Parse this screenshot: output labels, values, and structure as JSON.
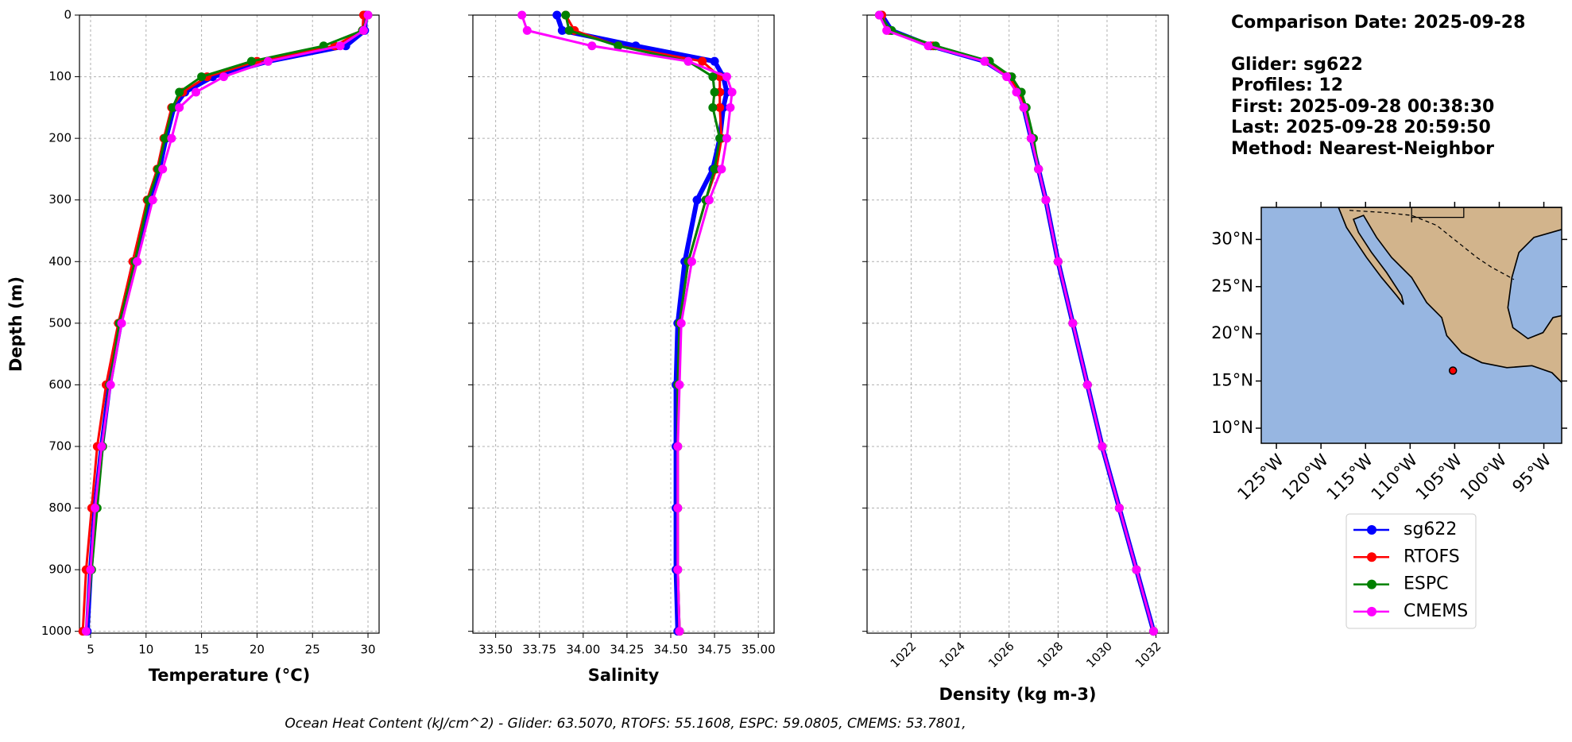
{
  "chart_data": [
    {
      "type": "line",
      "xlabel": "Temperature (°C)",
      "ylabel": "Depth (m)",
      "xlim": [
        4,
        31
      ],
      "xticks": [
        5,
        10,
        15,
        20,
        25,
        30
      ],
      "ylim": [
        0,
        1003
      ],
      "yinverted": true,
      "yticks": [
        0,
        100,
        200,
        300,
        400,
        500,
        600,
        700,
        800,
        900,
        1000
      ],
      "yticklabels": true,
      "grid": true,
      "depth": [
        0,
        25,
        50,
        75,
        100,
        125,
        150,
        200,
        250,
        300,
        400,
        500,
        600,
        700,
        800,
        900,
        1000
      ],
      "series": [
        {
          "name": "sg622",
          "color": "#0000ff",
          "values": [
            29.8,
            29.7,
            28,
            21,
            16,
            13.5,
            12.5,
            11.8,
            11.2,
            10.3,
            8.9,
            7.7,
            6.7,
            6.0,
            5.4,
            5.0,
            4.7
          ]
        },
        {
          "name": "RTOFS",
          "color": "#ff0000",
          "values": [
            29.6,
            29.5,
            27,
            20,
            15.5,
            13.3,
            12.3,
            11.6,
            11,
            10.1,
            8.8,
            7.5,
            6.4,
            5.6,
            5.1,
            4.6,
            4.3
          ]
        },
        {
          "name": "ESPC",
          "color": "#008000",
          "values": [
            30.0,
            29.5,
            26,
            19.5,
            15,
            13,
            12.4,
            11.7,
            11.1,
            10.2,
            9,
            7.6,
            6.7,
            6.1,
            5.6,
            5.1,
            4.6
          ]
        },
        {
          "name": "CMEMS",
          "color": "#ff00ff",
          "values": [
            30,
            29.6,
            27.5,
            21,
            17,
            14.5,
            13,
            12.3,
            11.5,
            10.6,
            9.2,
            7.8,
            6.8,
            6.0,
            5.4,
            5.0,
            4.6
          ]
        }
      ]
    },
    {
      "type": "line",
      "xlabel": "Salinity",
      "xlim": [
        33.37,
        35.09
      ],
      "xticks": [
        {
          "value": 33.5,
          "label": "33.50"
        },
        {
          "value": 33.75,
          "label": "33.75"
        },
        {
          "value": 34,
          "label": "34.00"
        },
        {
          "value": 34.25,
          "label": "34.25"
        },
        {
          "value": 34.5,
          "label": "34.50"
        },
        {
          "value": 34.75,
          "label": "34.75"
        },
        {
          "value": 35,
          "label": "35.00"
        }
      ],
      "ylim": [
        0,
        1003
      ],
      "yinverted": true,
      "yticks": [
        0,
        100,
        200,
        300,
        400,
        500,
        600,
        700,
        800,
        900,
        1000
      ],
      "yticklabels": false,
      "grid": true,
      "depth": [
        0,
        25,
        50,
        75,
        100,
        125,
        150,
        200,
        250,
        300,
        400,
        500,
        600,
        700,
        800,
        900,
        1000
      ],
      "series": [
        {
          "name": "sg622",
          "color": "#0000ff",
          "values": [
            33.85,
            33.88,
            34.3,
            34.75,
            34.8,
            34.82,
            34.8,
            34.78,
            34.74,
            34.65,
            34.58,
            34.54,
            34.53,
            34.53,
            34.53,
            34.53,
            34.54
          ]
        },
        {
          "name": "RTOFS",
          "color": "#ff0000",
          "values": [
            33.9,
            33.95,
            34.2,
            34.68,
            34.78,
            34.78,
            34.78,
            34.79,
            34.76,
            34.7,
            34.6,
            34.55,
            34.54,
            34.54,
            34.54,
            34.54,
            34.55
          ]
        },
        {
          "name": "ESPC",
          "color": "#008000",
          "values": [
            33.9,
            33.92,
            34.2,
            34.6,
            34.74,
            34.75,
            34.74,
            34.78,
            34.75,
            34.7,
            34.6,
            34.55,
            34.54,
            34.54,
            34.54,
            34.54,
            34.55
          ]
        },
        {
          "name": "CMEMS",
          "color": "#ff00ff",
          "values": [
            33.65,
            33.68,
            34.05,
            34.6,
            34.82,
            34.85,
            34.84,
            34.82,
            34.79,
            34.72,
            34.62,
            34.56,
            34.55,
            34.54,
            34.54,
            34.54,
            34.55
          ]
        }
      ]
    },
    {
      "type": "line",
      "xlabel": "Density (kg m-3)",
      "xlim": [
        1020.2,
        1032.5
      ],
      "xticks": [
        1022,
        1024,
        1026,
        1028,
        1030,
        1032
      ],
      "xtickrotation": 45,
      "ylim": [
        0,
        1003
      ],
      "yinverted": true,
      "yticks": [
        0,
        100,
        200,
        300,
        400,
        500,
        600,
        700,
        800,
        900,
        1000
      ],
      "yticklabels": false,
      "grid": true,
      "depth": [
        0,
        25,
        50,
        75,
        100,
        125,
        150,
        200,
        250,
        300,
        400,
        500,
        600,
        700,
        800,
        900,
        1000
      ],
      "series": [
        {
          "name": "sg622",
          "color": "#0000ff",
          "values": [
            1020.8,
            1021.2,
            1022.8,
            1025.0,
            1026.0,
            1026.4,
            1026.6,
            1026.9,
            1027.2,
            1027.5,
            1028.0,
            1028.6,
            1029.2,
            1029.8,
            1030.5,
            1031.2,
            1031.9
          ]
        },
        {
          "name": "RTOFS",
          "color": "#ff0000",
          "values": [
            1020.8,
            1021.1,
            1022.9,
            1025.1,
            1026.0,
            1026.4,
            1026.6,
            1026.9,
            1027.2,
            1027.5,
            1028.0,
            1028.6,
            1029.2,
            1029.8,
            1030.5,
            1031.2,
            1031.9
          ]
        },
        {
          "name": "ESPC",
          "color": "#008000",
          "values": [
            1020.7,
            1021.2,
            1023.0,
            1025.2,
            1026.1,
            1026.5,
            1026.7,
            1027.0,
            1027.2,
            1027.5,
            1028.0,
            1028.6,
            1029.2,
            1029.8,
            1030.5,
            1031.2,
            1031.9
          ]
        },
        {
          "name": "CMEMS",
          "color": "#ff00ff",
          "values": [
            1020.7,
            1021.0,
            1022.7,
            1025.0,
            1025.9,
            1026.3,
            1026.6,
            1026.9,
            1027.2,
            1027.5,
            1028.0,
            1028.6,
            1029.2,
            1029.8,
            1030.5,
            1031.2,
            1031.9
          ]
        }
      ]
    },
    {
      "type": "map",
      "xlim": [
        -126.7,
        -93
      ],
      "ylim": [
        8.4,
        33.4
      ],
      "xticks": [
        {
          "value": -125,
          "label": "125°W"
        },
        {
          "value": -120,
          "label": "120°W"
        },
        {
          "value": -115,
          "label": "115°W"
        },
        {
          "value": -110,
          "label": "110°W"
        },
        {
          "value": -105,
          "label": "105°W"
        },
        {
          "value": -100,
          "label": "100°W"
        },
        {
          "value": -95,
          "label": "95°W"
        }
      ],
      "yticks": [
        {
          "value": 10,
          "label": "10°N"
        },
        {
          "value": 15,
          "label": "15°N"
        },
        {
          "value": 20,
          "label": "20°N"
        },
        {
          "value": 25,
          "label": "25°N"
        },
        {
          "value": 30,
          "label": "30°N"
        }
      ],
      "marker": {
        "x": -105.2,
        "y": 16.1,
        "color": "#ff0000"
      }
    }
  ],
  "info": {
    "date": "Comparison Date: 2025-09-28",
    "lines": [
      "Glider: sg622",
      "Profiles: 12",
      "First: 2025-09-28 00:38:30",
      "Last: 2025-09-28 20:59:50",
      "Method: Nearest-Neighbor"
    ]
  },
  "footer": "Ocean Heat Content (kJ/cm^2) - Glider: 63.5070,  RTOFS: 55.1608,  ESPC: 59.0805,  CMEMS: 53.7801,"
}
